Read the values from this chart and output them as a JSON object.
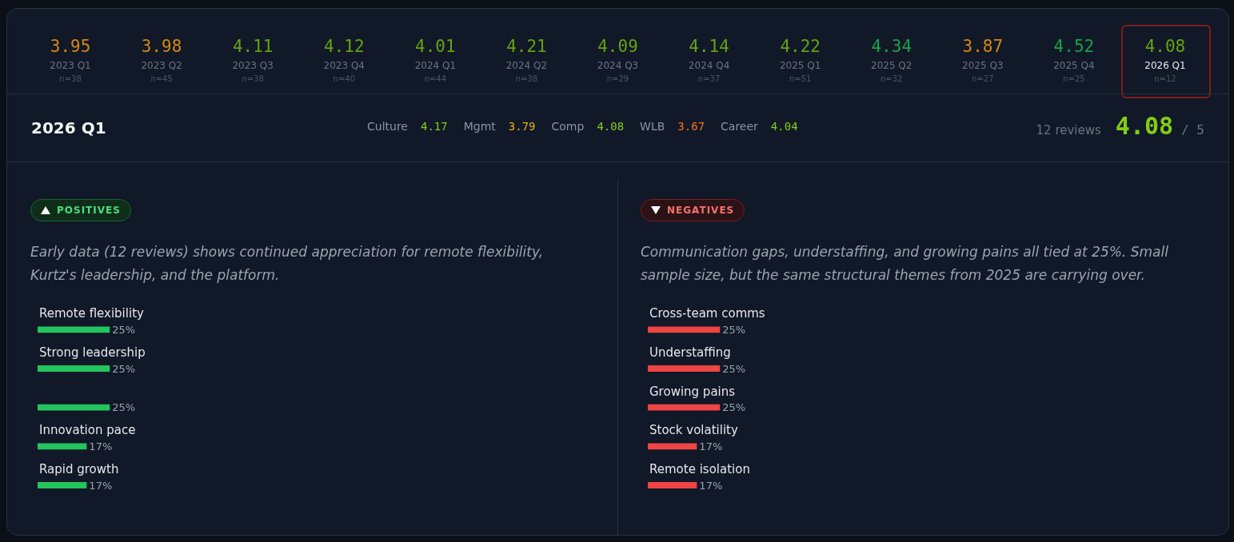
{
  "chart_data": [
    {
      "type": "other",
      "data_labels": true,
      "categories": [
        "2023 Q1",
        "2023 Q2",
        "2023 Q3",
        "2023 Q4",
        "2024 Q1",
        "2024 Q2",
        "2024 Q3",
        "2024 Q4",
        "2025 Q1",
        "2025 Q2",
        "2025 Q3",
        "2025 Q4",
        "2026 Q1"
      ],
      "values": [
        3.95,
        3.98,
        4.11,
        4.12,
        4.01,
        4.21,
        4.09,
        4.14,
        4.22,
        4.34,
        3.87,
        4.52,
        4.08
      ],
      "colors": [
        "#d4890f",
        "#d4890f",
        "#65a30d",
        "#65a30d",
        "#65a30d",
        "#65a30d",
        "#65a30d",
        "#65a30d",
        "#65a30d",
        "#16a34a",
        "#d4890f",
        "#16a34a",
        "#65a30d"
      ],
      "annotations": [
        "n=38",
        "n=45",
        "n=38",
        "n=40",
        "n=44",
        "n=38",
        "n=29",
        "n=37",
        "n=51",
        "n=32",
        "n=27",
        "n=25",
        "n=12"
      ]
    },
    {
      "type": "other",
      "data_labels": true,
      "title": "2026 Q1",
      "categories": [
        "Culture",
        "Mgmt",
        "Comp",
        "WLB",
        "Career"
      ],
      "values": [
        4.17,
        3.79,
        4.08,
        3.67,
        4.04
      ],
      "colors": [
        "#84cc16",
        "#eab308",
        "#84cc16",
        "#f97316",
        "#84cc16"
      ],
      "annotations": [
        "12 reviews",
        "4.08",
        "/ 5"
      ]
    },
    {
      "type": "bar",
      "orientation": "horizontal",
      "title": "POSITIVES",
      "subtitle": "Early data (12 reviews) shows continued appreciation for remote flexibility, Kurtz's leadership, and the platform.",
      "categories": [
        "Remote flexibility",
        "Strong leadership",
        null,
        "Innovation pace",
        "Rapid growth"
      ],
      "values": [
        25,
        25,
        25,
        17,
        17
      ],
      "color": "#22c55e",
      "value_labels": [
        "25%",
        "25%",
        "25%",
        "17%",
        "17%"
      ]
    },
    {
      "type": "bar",
      "orientation": "horizontal",
      "title": "NEGATIVES",
      "subtitle": "Communication gaps, understaffing, and growing pains all tied at 25%. Small sample size, but the same structural themes from 2025 are carrying over.",
      "categories": [
        "Cross-team comms",
        "Understaffing",
        "Growing pains",
        "Stock volatility",
        "Remote isolation"
      ],
      "values": [
        25,
        25,
        25,
        17,
        17
      ],
      "color": "#ef4444",
      "value_labels": [
        "25%",
        "25%",
        "25%",
        "17%",
        "17%"
      ]
    }
  ]
}
